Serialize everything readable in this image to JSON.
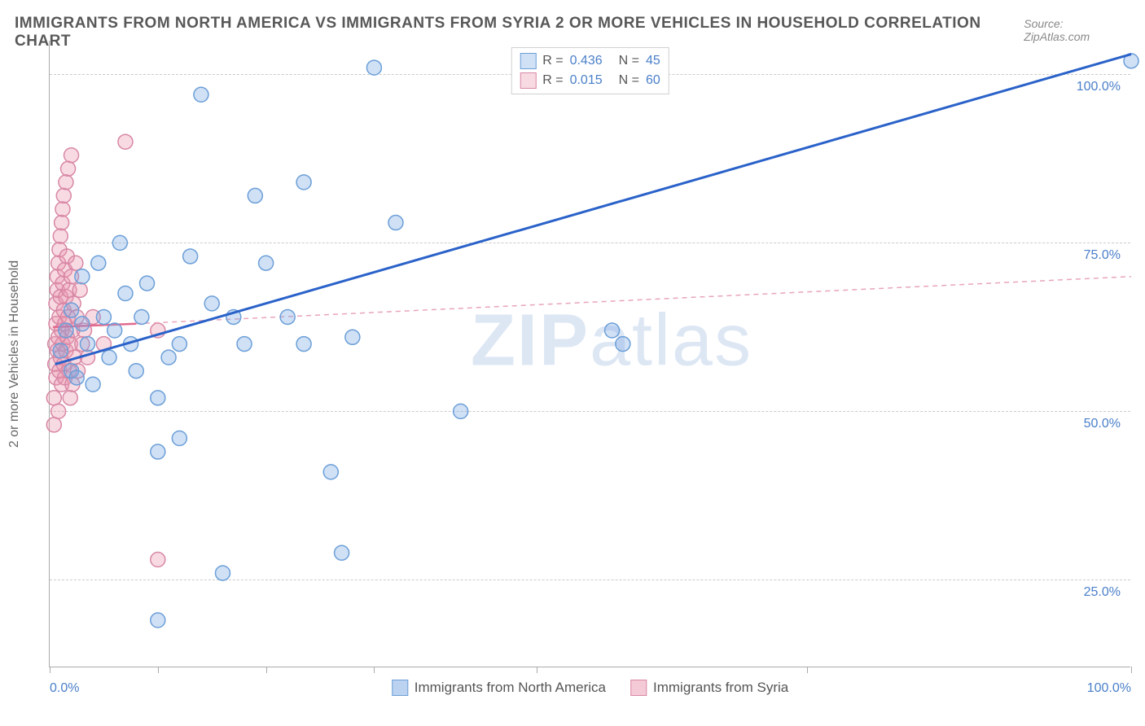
{
  "header": {
    "title": "IMMIGRANTS FROM NORTH AMERICA VS IMMIGRANTS FROM SYRIA 2 OR MORE VEHICLES IN HOUSEHOLD CORRELATION CHART",
    "source": "Source: ZipAtlas.com"
  },
  "y_axis_label": "2 or more Vehicles in Household",
  "watermark_bold": "ZIP",
  "watermark_rest": "atlas",
  "chart": {
    "type": "scatter",
    "xlim": [
      0,
      100
    ],
    "ylim": [
      12,
      105
    ],
    "y_gridlines": [
      25,
      50,
      75,
      100
    ],
    "y_tick_labels": [
      "25.0%",
      "50.0%",
      "75.0%",
      "100.0%"
    ],
    "x_ticks": [
      0,
      10,
      20,
      30,
      45,
      70,
      100
    ],
    "x_tick_labels": {
      "0": "0.0%",
      "100": "100.0%"
    },
    "background_color": "#ffffff",
    "grid_color": "#cccccc",
    "axis_color": "#aaaaaa",
    "marker_radius": 9,
    "marker_stroke_width": 1.5,
    "series": [
      {
        "name": "Immigrants from North America",
        "fill": "rgba(120,165,225,0.35)",
        "stroke": "#6b9fd8",
        "R": "0.436",
        "N": "45",
        "trend": {
          "x1": 0.5,
          "y1": 57,
          "x2": 100,
          "y2": 103,
          "color": "#2a62c9",
          "width": 3,
          "dash": ""
        },
        "points": [
          [
            1,
            59
          ],
          [
            1.5,
            62
          ],
          [
            2,
            56
          ],
          [
            2,
            65
          ],
          [
            2.5,
            55
          ],
          [
            3,
            63
          ],
          [
            3,
            70
          ],
          [
            3.5,
            60
          ],
          [
            4,
            54
          ],
          [
            4.5,
            72
          ],
          [
            5,
            64
          ],
          [
            5.5,
            58
          ],
          [
            6,
            62
          ],
          [
            6.5,
            75
          ],
          [
            7,
            67.5
          ],
          [
            7.5,
            60
          ],
          [
            8,
            56
          ],
          [
            8.5,
            64
          ],
          [
            9,
            69
          ],
          [
            10,
            19
          ],
          [
            10,
            44
          ],
          [
            10,
            52
          ],
          [
            11,
            58
          ],
          [
            12,
            60
          ],
          [
            12,
            46
          ],
          [
            13,
            73
          ],
          [
            14,
            97
          ],
          [
            15,
            66
          ],
          [
            16,
            26
          ],
          [
            17,
            64
          ],
          [
            18,
            60
          ],
          [
            19,
            82
          ],
          [
            20,
            72
          ],
          [
            22,
            64
          ],
          [
            23.5,
            84
          ],
          [
            23.5,
            60
          ],
          [
            26,
            41
          ],
          [
            27,
            29
          ],
          [
            28,
            61
          ],
          [
            30,
            101
          ],
          [
            32,
            78
          ],
          [
            38,
            50
          ],
          [
            52,
            62
          ],
          [
            53,
            60
          ],
          [
            100,
            102
          ]
        ]
      },
      {
        "name": "Immigrants from Syria",
        "fill": "rgba(235,150,175,0.35)",
        "stroke": "#d888a5",
        "R": "0.015",
        "N": "60",
        "trend_solid": {
          "x1": 0.3,
          "y1": 62.5,
          "x2": 8,
          "y2": 63,
          "color": "#e36a8f",
          "width": 2.5,
          "dash": ""
        },
        "trend_dashed": {
          "x1": 8,
          "y1": 63,
          "x2": 100,
          "y2": 70,
          "color": "#e8a5ba",
          "width": 1.5,
          "dash": "6,5"
        },
        "points": [
          [
            0.4,
            48
          ],
          [
            0.4,
            52
          ],
          [
            0.5,
            57
          ],
          [
            0.5,
            60
          ],
          [
            0.6,
            63
          ],
          [
            0.6,
            66
          ],
          [
            0.6,
            55
          ],
          [
            0.7,
            68
          ],
          [
            0.7,
            59
          ],
          [
            0.7,
            70
          ],
          [
            0.8,
            72
          ],
          [
            0.8,
            61
          ],
          [
            0.8,
            50
          ],
          [
            0.9,
            74
          ],
          [
            0.9,
            64
          ],
          [
            0.9,
            56
          ],
          [
            1.0,
            76
          ],
          [
            1.0,
            67
          ],
          [
            1.0,
            58
          ],
          [
            1.1,
            78
          ],
          [
            1.1,
            62
          ],
          [
            1.1,
            54
          ],
          [
            1.2,
            80
          ],
          [
            1.2,
            69
          ],
          [
            1.2,
            60
          ],
          [
            1.3,
            82
          ],
          [
            1.3,
            65
          ],
          [
            1.3,
            57
          ],
          [
            1.4,
            71
          ],
          [
            1.4,
            63
          ],
          [
            1.4,
            55
          ],
          [
            1.5,
            84
          ],
          [
            1.5,
            67
          ],
          [
            1.5,
            59
          ],
          [
            1.6,
            61
          ],
          [
            1.6,
            73
          ],
          [
            1.7,
            86
          ],
          [
            1.7,
            64
          ],
          [
            1.8,
            56
          ],
          [
            1.8,
            68
          ],
          [
            1.9,
            60
          ],
          [
            1.9,
            52
          ],
          [
            2.0,
            88
          ],
          [
            2.0,
            70
          ],
          [
            2.1,
            62
          ],
          [
            2.1,
            54
          ],
          [
            2.2,
            66
          ],
          [
            2.3,
            58
          ],
          [
            2.4,
            72
          ],
          [
            2.5,
            64
          ],
          [
            2.6,
            56
          ],
          [
            2.8,
            68
          ],
          [
            3.0,
            60
          ],
          [
            3.2,
            62
          ],
          [
            3.5,
            58
          ],
          [
            4.0,
            64
          ],
          [
            5.0,
            60
          ],
          [
            7.0,
            90
          ],
          [
            10,
            28
          ],
          [
            10,
            62
          ]
        ]
      }
    ]
  },
  "legend_bottom": [
    {
      "label": "Immigrants from North America",
      "fill": "rgba(120,165,225,0.5)",
      "stroke": "#6b9fd8"
    },
    {
      "label": "Immigrants from Syria",
      "fill": "rgba(235,150,175,0.5)",
      "stroke": "#d888a5"
    }
  ]
}
